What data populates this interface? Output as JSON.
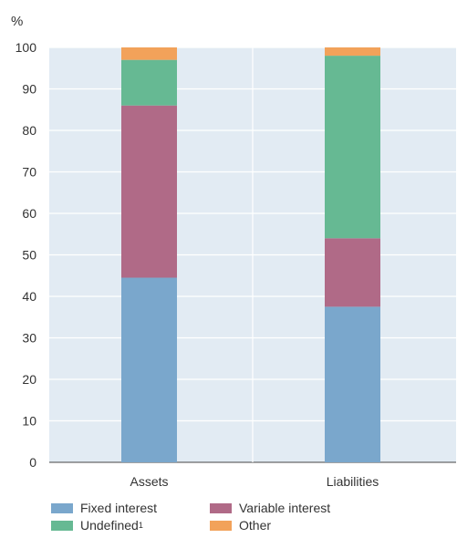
{
  "chart_data": {
    "type": "bar",
    "stacked": true,
    "unit_label": "%",
    "categories": [
      "Assets",
      "Liabilities"
    ],
    "ylim": [
      0,
      100
    ],
    "yticks": [
      0,
      10,
      20,
      30,
      40,
      50,
      60,
      70,
      80,
      90,
      100
    ],
    "grid": true,
    "legend_placement": "bottom-left",
    "series": [
      {
        "name": "Fixed interest",
        "values": [
          44.5,
          37.5
        ],
        "color": "#7aa7cc"
      },
      {
        "name": "Variable interest",
        "values": [
          41.5,
          16.5
        ],
        "color": "#b06a87"
      },
      {
        "name": "Undefined",
        "footnote": "1",
        "values": [
          11,
          44
        ],
        "color": "#66b993"
      },
      {
        "name": "Other",
        "values": [
          3,
          2
        ],
        "color": "#f2a25a"
      }
    ]
  }
}
